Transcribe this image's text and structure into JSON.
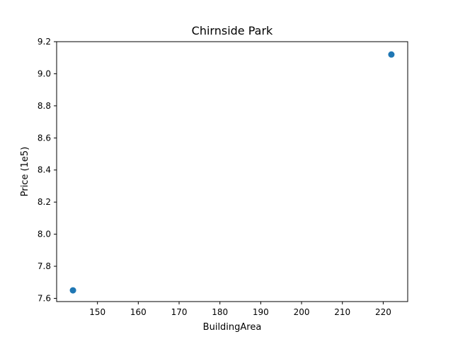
{
  "chart_data": {
    "type": "scatter",
    "title": "Chirnside Park",
    "xlabel": "BuildingArea",
    "ylabel": "Price (1e5)",
    "xlim": [
      140,
      226
    ],
    "ylim": [
      7.58,
      9.2
    ],
    "x_ticks": [
      150,
      160,
      170,
      180,
      190,
      200,
      210,
      220
    ],
    "y_ticks": [
      7.6,
      7.8,
      8.0,
      8.2,
      8.4,
      8.6,
      8.8,
      9.0,
      9.2
    ],
    "x_tick_labels": [
      "150",
      "160",
      "170",
      "180",
      "190",
      "200",
      "210",
      "220"
    ],
    "y_tick_labels": [
      "7.6",
      "7.8",
      "8.0",
      "8.2",
      "8.4",
      "8.6",
      "8.8",
      "9.0",
      "9.2"
    ],
    "grid": false,
    "series": [
      {
        "color": "#1f77b4",
        "points": [
          {
            "x": 144,
            "y": 7.65
          },
          {
            "x": 222,
            "y": 9.12
          }
        ]
      }
    ]
  }
}
